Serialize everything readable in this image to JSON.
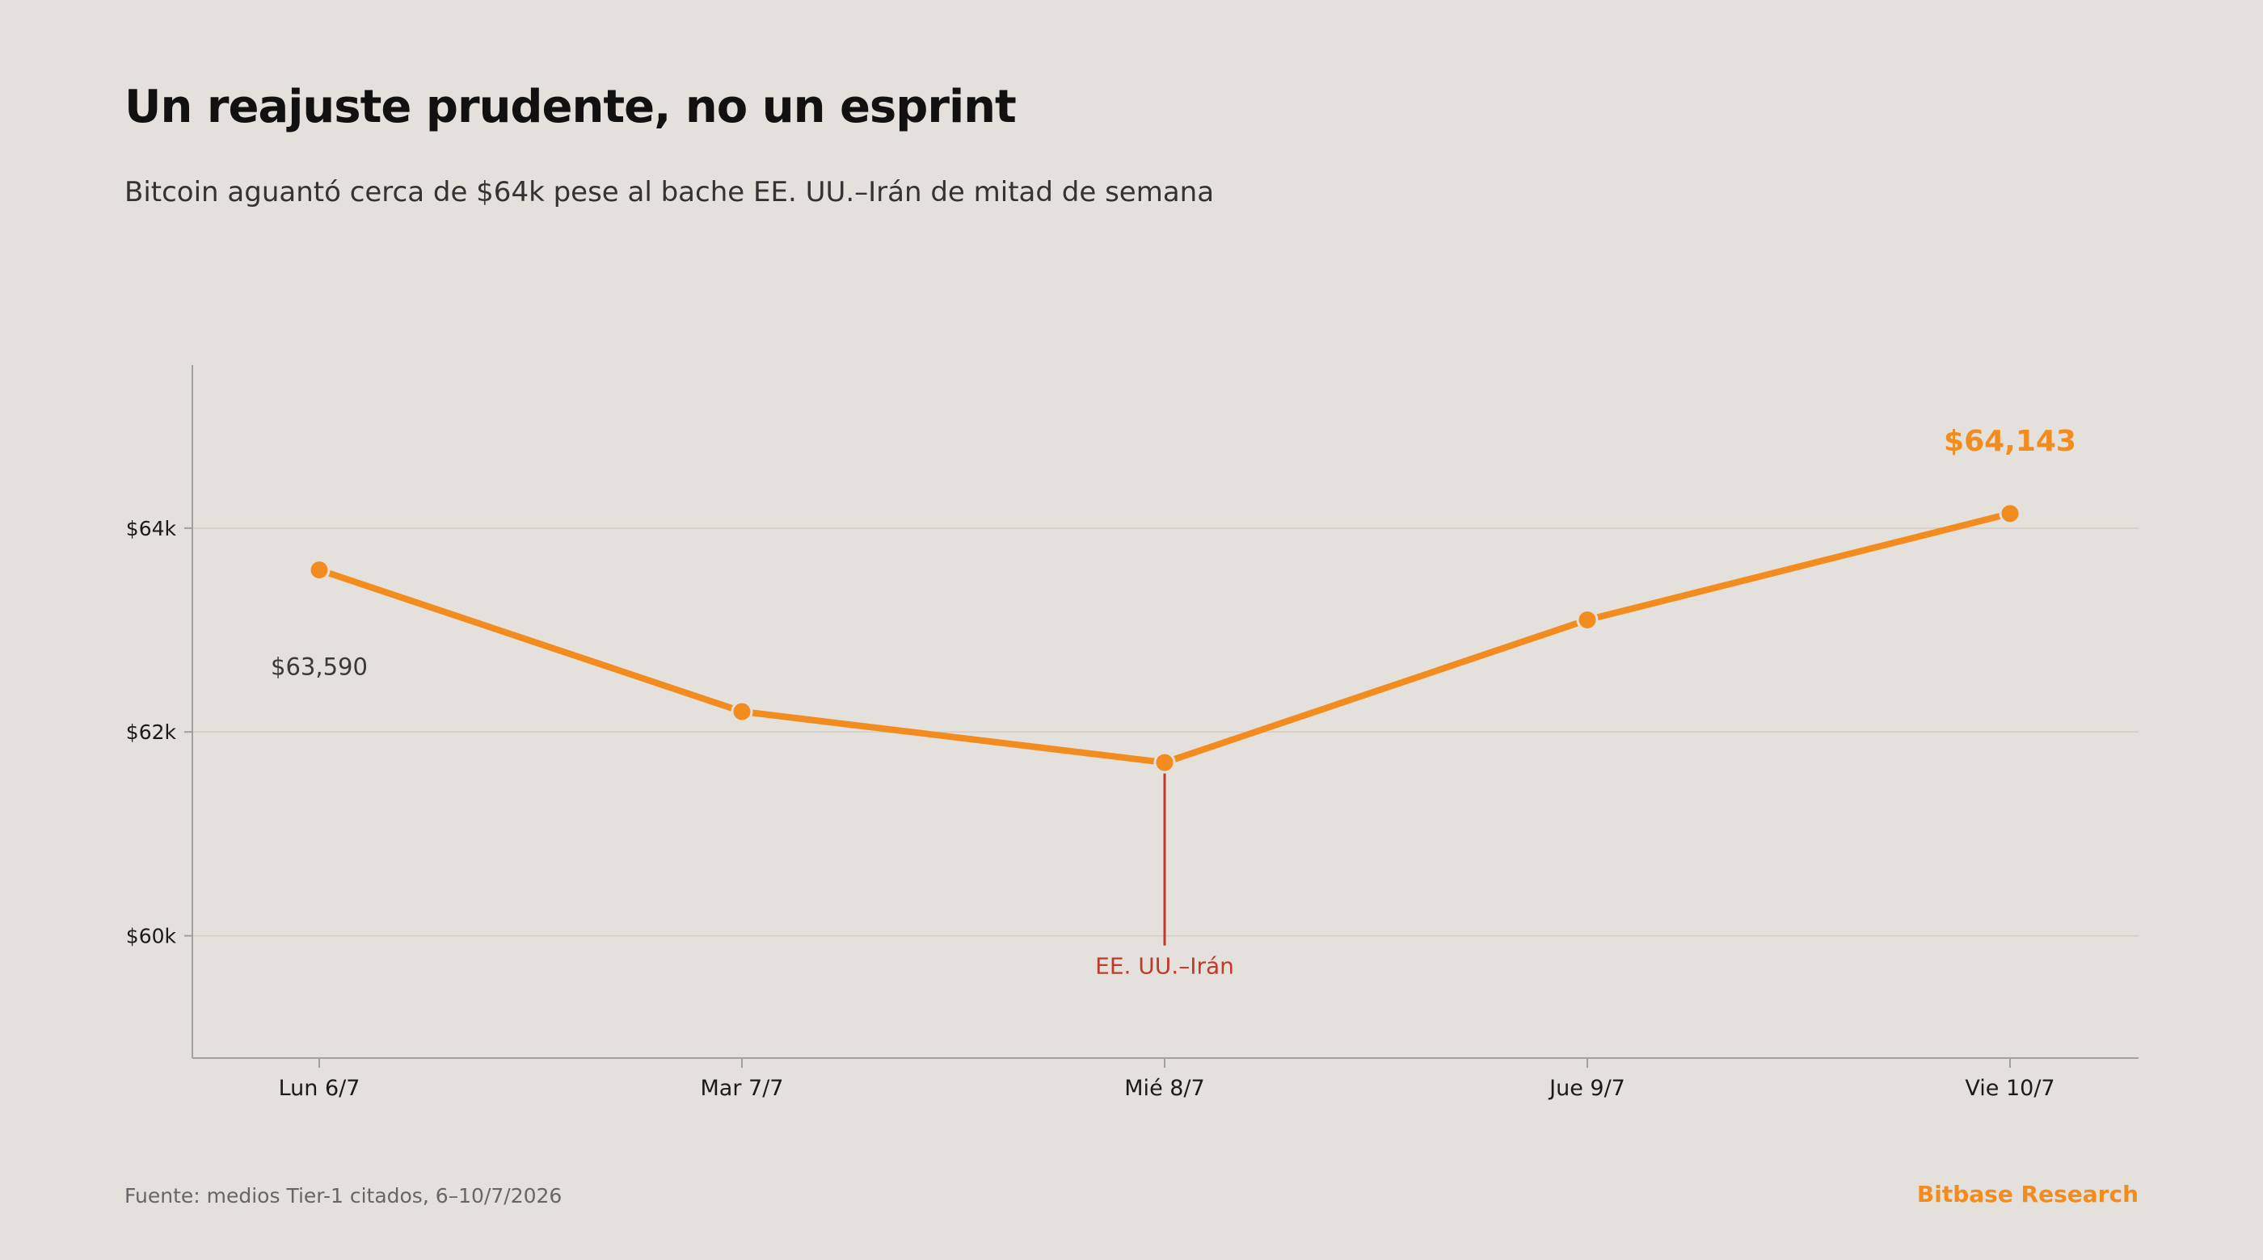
{
  "header": {
    "title": "Un reajuste prudente, no un esprint",
    "subtitle": "Bitcoin aguantó cerca de $64k pese al bache EE. UU.–Irán de mitad de semana"
  },
  "footer": {
    "source": "Fuente: medios Tier-1 citados, 6–10/7/2026",
    "brand": "Bitbase Research"
  },
  "colors": {
    "background": "#e4e0db",
    "series": "#f28c1e",
    "annotation": "#c0392b",
    "axis": "#a0a0a0",
    "grid": "#d2cdc7"
  },
  "chart_data": {
    "type": "line",
    "categories": [
      "Lun 6/7",
      "Mar 7/7",
      "Mié 8/7",
      "Jue 9/7",
      "Vie 10/7"
    ],
    "series": [
      {
        "values": [
          63590,
          62200,
          61700,
          63100,
          64143
        ]
      }
    ],
    "ylim": [
      58800,
      65600
    ],
    "yticks": [
      60000,
      62000,
      64000
    ],
    "ytick_labels": [
      "$60k",
      "$62k",
      "$64k"
    ],
    "grid": true,
    "data_labels": [
      {
        "index": 0,
        "text": "$63,590",
        "emphasis": false
      },
      {
        "index": 4,
        "text": "$64,143",
        "emphasis": true
      }
    ],
    "annotations": [
      {
        "index": 2,
        "text": "EE. UU.–Irán",
        "down_to": 60000
      }
    ]
  }
}
